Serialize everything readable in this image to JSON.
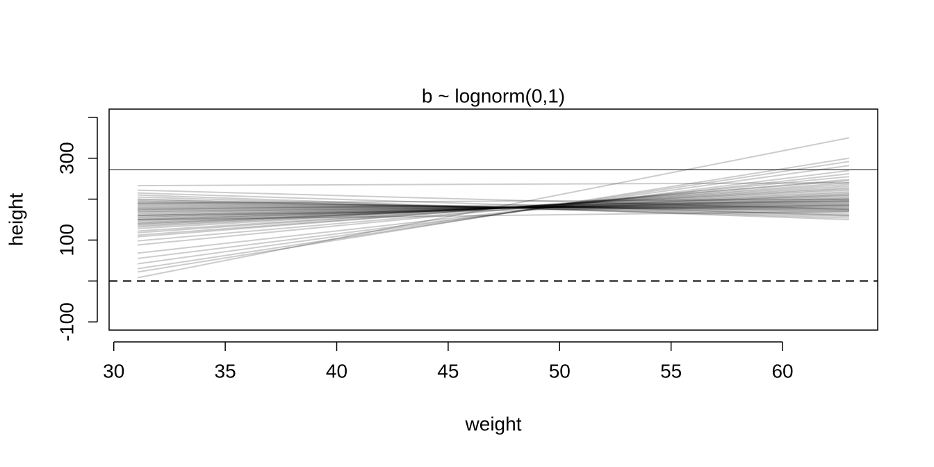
{
  "chart_data": {
    "type": "line",
    "title": "b ~ lognorm(0,1)",
    "x_label": "weight",
    "y_label": "height",
    "x": [
      31.07,
      62.99
    ],
    "line_color": "rgba(0,0,0,0.2)",
    "xlim": [
      29.79,
      64.27
    ],
    "xticks": [
      30,
      35,
      40,
      45,
      50,
      55,
      60
    ],
    "ylim": [
      -120,
      420
    ],
    "yticks": [
      -100,
      {
        "value": 0,
        "label": null
      },
      100,
      {
        "value": 200,
        "label": null
      },
      300,
      {
        "value": 400,
        "label": null
      }
    ],
    "reference_lines": [
      {
        "value": 272,
        "style": "solid"
      },
      {
        "value": 0,
        "style": "dashed"
      }
    ],
    "series": [
      {
        "values": [
          8,
          350
        ]
      },
      {
        "values": [
          22,
          300
        ]
      },
      {
        "values": [
          30,
          292
        ]
      },
      {
        "values": [
          42,
          282
        ]
      },
      {
        "values": [
          55,
          270
        ]
      },
      {
        "values": [
          68,
          262
        ]
      },
      {
        "values": [
          88,
          255
        ]
      },
      {
        "values": [
          98,
          248
        ]
      },
      {
        "values": [
          108,
          245
        ]
      },
      {
        "values": [
          112,
          240
        ]
      },
      {
        "values": [
          118,
          236
        ]
      },
      {
        "values": [
          122,
          232
        ]
      },
      {
        "values": [
          128,
          228
        ]
      },
      {
        "values": [
          132,
          225
        ]
      },
      {
        "values": [
          135,
          222
        ]
      },
      {
        "values": [
          138,
          218
        ]
      },
      {
        "values": [
          140,
          215
        ]
      },
      {
        "values": [
          142,
          212
        ]
      },
      {
        "values": [
          145,
          210
        ]
      },
      {
        "values": [
          148,
          208
        ]
      },
      {
        "values": [
          150,
          205
        ]
      },
      {
        "values": [
          152,
          202
        ]
      },
      {
        "values": [
          155,
          200
        ]
      },
      {
        "values": [
          157,
          198
        ]
      },
      {
        "values": [
          160,
          196
        ]
      },
      {
        "values": [
          162,
          194
        ]
      },
      {
        "values": [
          165,
          192
        ]
      },
      {
        "values": [
          168,
          190
        ]
      },
      {
        "values": [
          170,
          188
        ]
      },
      {
        "values": [
          172,
          186
        ]
      },
      {
        "values": [
          175,
          184
        ]
      },
      {
        "values": [
          178,
          182
        ]
      },
      {
        "values": [
          180,
          180
        ]
      },
      {
        "values": [
          183,
          178
        ]
      },
      {
        "values": [
          185,
          176
        ]
      },
      {
        "values": [
          188,
          174
        ]
      },
      {
        "values": [
          190,
          172
        ]
      },
      {
        "values": [
          193,
          170
        ]
      },
      {
        "values": [
          195,
          166
        ]
      },
      {
        "values": [
          198,
          162
        ]
      },
      {
        "values": [
          200,
          158
        ]
      },
      {
        "values": [
          205,
          154
        ]
      },
      {
        "values": [
          210,
          150
        ]
      },
      {
        "values": [
          215,
          160
        ]
      },
      {
        "values": [
          222,
          175
        ]
      },
      {
        "values": [
          233,
          240
        ]
      },
      {
        "values": [
          190,
          200
        ]
      },
      {
        "values": [
          175,
          195
        ]
      },
      {
        "values": [
          160,
          185
        ]
      },
      {
        "values": [
          150,
          170
        ]
      }
    ]
  }
}
